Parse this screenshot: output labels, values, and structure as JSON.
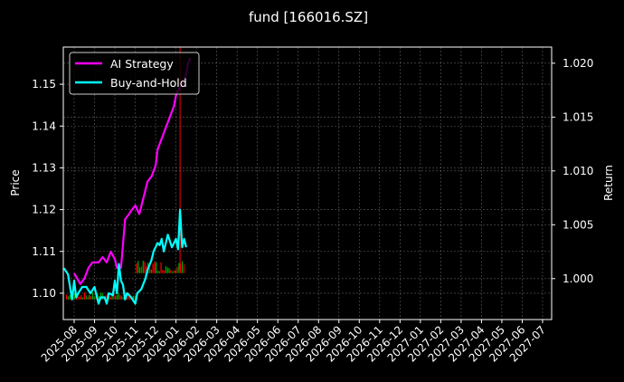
{
  "chart_data": {
    "type": "line",
    "title": "fund [166016.SZ]",
    "xlabel": "",
    "ylabel": "Price",
    "y2label": "Return",
    "grid": true,
    "legend_position": "upper left",
    "x_tick_labels": [
      "2025-08",
      "2025-09",
      "2025-10",
      "2025-11",
      "2025-12",
      "2026-01",
      "2026-02",
      "2026-03",
      "2026-04",
      "2026-05",
      "2026-06",
      "2026-07",
      "2026-08",
      "2026-09",
      "2026-10",
      "2026-11",
      "2026-12",
      "2027-01",
      "2027-02",
      "2027-03",
      "2027-04",
      "2027-05",
      "2027-06",
      "2027-07"
    ],
    "y_ticks": [
      "1.10",
      "1.11",
      "1.12",
      "1.13",
      "1.14",
      "1.15"
    ],
    "y_tick_values": [
      1.1,
      1.11,
      1.12,
      1.13,
      1.14,
      1.15
    ],
    "ylim": [
      1.0937,
      1.1589
    ],
    "y2_ticks": [
      "1.000",
      "1.005",
      "1.010",
      "1.015",
      "1.020"
    ],
    "y2_tick_values": [
      1.0,
      1.005,
      1.01,
      1.015,
      1.02
    ],
    "y2lim": [
      0.9962,
      1.0215
    ],
    "colors": {
      "ai_strategy": "#ff00ff",
      "buy_and_hold": "#00ffff",
      "volume_up": "#ff0000",
      "volume_down": "#00aa00",
      "signal_line": "#ff0000"
    },
    "series": [
      {
        "name": "AI Strategy",
        "axis": "right",
        "color": "#ff00ff",
        "x_months": [
          0.0,
          0.3,
          0.5,
          0.7,
          0.9,
          1.0,
          1.2,
          1.4,
          1.6,
          1.8,
          2.0,
          2.1,
          2.3,
          2.5,
          2.7,
          2.8,
          3.0,
          3.2,
          3.4,
          3.6,
          3.8,
          4.0,
          4.1,
          4.3,
          4.5,
          4.7,
          4.9,
          5.0,
          5.1,
          5.3,
          5.5,
          5.6,
          5.7
        ],
        "values": [
          1.0005,
          0.9995,
          1.0,
          1.001,
          1.0015,
          1.0015,
          1.0015,
          1.002,
          1.0015,
          1.0025,
          1.0018,
          1.001,
          1.001,
          1.0055,
          1.006,
          1.0063,
          1.0068,
          1.006,
          1.0075,
          1.009,
          1.0095,
          1.0105,
          1.012,
          1.013,
          1.014,
          1.015,
          1.016,
          1.017,
          1.0175,
          1.018,
          1.019,
          1.02,
          1.0205
        ]
      },
      {
        "name": "Buy-and-Hold",
        "axis": "left",
        "color": "#00ffff",
        "x_months": [
          -0.5,
          -0.3,
          -0.1,
          0.0,
          0.1,
          0.2,
          0.4,
          0.6,
          0.8,
          1.0,
          1.2,
          1.3,
          1.5,
          1.6,
          1.7,
          1.9,
          2.0,
          2.1,
          2.2,
          2.3,
          2.4,
          2.5,
          2.6,
          2.8,
          3.0,
          3.1,
          3.3,
          3.5,
          3.6,
          3.8,
          3.9,
          4.1,
          4.2,
          4.3,
          4.4,
          4.6,
          4.8,
          5.0,
          5.1,
          5.2,
          5.3,
          5.4,
          5.5
        ],
        "values": [
          1.106,
          1.1045,
          1.0985,
          1.103,
          1.099,
          1.1,
          1.1015,
          1.1015,
          1.1,
          1.1015,
          1.0975,
          1.099,
          1.099,
          1.0975,
          1.1,
          1.0995,
          1.103,
          1.1,
          1.107,
          1.103,
          1.102,
          1.0985,
          1.1,
          1.099,
          1.0975,
          1.1,
          1.101,
          1.1035,
          1.1055,
          1.108,
          1.11,
          1.112,
          1.1115,
          1.113,
          1.11,
          1.114,
          1.111,
          1.113,
          1.1105,
          1.12,
          1.111,
          1.113,
          1.111
        ]
      }
    ],
    "volume_bars_note": "Small red/green bars drawn near baseline (~1.100-1.108 on price axis) from 2025-08 to mid 2026-01",
    "signal_line": {
      "x_months": 5.2,
      "from_price": 1.159,
      "to_price": 1.1055,
      "color": "#ff0000"
    }
  },
  "legend": {
    "items": [
      {
        "label": "AI Strategy",
        "color": "#ff00ff"
      },
      {
        "label": "Buy-and-Hold",
        "color": "#00ffff"
      }
    ]
  }
}
